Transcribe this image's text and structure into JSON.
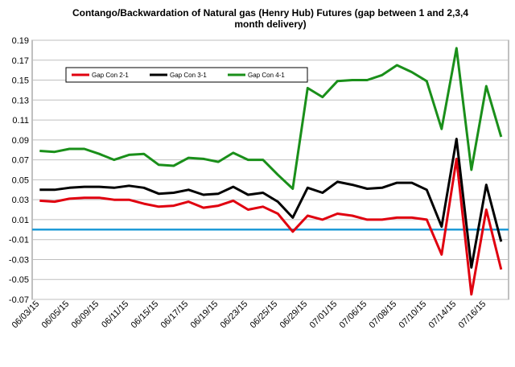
{
  "chart_data": {
    "type": "line",
    "title": "Contango/Backwardation of Natural gas (Henry Hub) Futures (gap between 1 and 2,3,4",
    "subtitle": "month delivery)",
    "xlabel": "",
    "ylabel": "",
    "ylim": [
      -0.07,
      0.19
    ],
    "yticks": [
      "0.19",
      "0.17",
      "0.15",
      "0.13",
      "0.11",
      "0.09",
      "0.07",
      "0.05",
      "0.03",
      "0.01",
      "-0.01",
      "-0.03",
      "-0.05",
      "-0.07"
    ],
    "ytick_values": [
      0.19,
      0.17,
      0.15,
      0.13,
      0.11,
      0.09,
      0.07,
      0.05,
      0.03,
      0.01,
      -0.01,
      -0.03,
      -0.05,
      -0.07
    ],
    "xtick_labels": [
      "06/03/15",
      "06/05/15",
      "06/09/15",
      "06/11/15",
      "06/15/15",
      "06/17/15",
      "06/19/15",
      "06/23/15",
      "06/25/15",
      "06/29/15",
      "07/01/15",
      "07/06/15",
      "07/08/15",
      "07/10/15",
      "07/14/15",
      "07/16/15"
    ],
    "reference_line": {
      "y": 0.0,
      "color": "#1f9bd7"
    },
    "legend_position": "top-left",
    "series": [
      {
        "name": "Gap Con 2-1",
        "color": "#e0000f",
        "values": [
          0.029,
          0.028,
          0.031,
          0.032,
          0.032,
          0.03,
          0.03,
          0.026,
          0.023,
          0.024,
          0.028,
          0.022,
          0.024,
          0.029,
          0.02,
          0.023,
          0.016,
          -0.002,
          0.014,
          0.01,
          0.016,
          0.014,
          0.01,
          0.01,
          0.012,
          0.012,
          0.01,
          -0.025,
          0.071,
          -0.065,
          0.02,
          -0.04
        ]
      },
      {
        "name": "Gap Con 3-1",
        "color": "#000000",
        "values": [
          0.04,
          0.04,
          0.042,
          0.043,
          0.043,
          0.042,
          0.044,
          0.042,
          0.036,
          0.037,
          0.04,
          0.035,
          0.036,
          0.043,
          0.035,
          0.037,
          0.028,
          0.012,
          0.042,
          0.037,
          0.048,
          0.045,
          0.041,
          0.042,
          0.047,
          0.047,
          0.04,
          0.003,
          0.091,
          -0.038,
          0.045,
          -0.012
        ]
      },
      {
        "name": "Gap Con 4-1",
        "color": "#1a8f1a",
        "values": [
          0.079,
          0.078,
          0.081,
          0.081,
          0.076,
          0.07,
          0.075,
          0.076,
          0.065,
          0.064,
          0.072,
          0.071,
          0.068,
          0.077,
          0.07,
          0.07,
          0.055,
          0.041,
          0.142,
          0.133,
          0.149,
          0.15,
          0.15,
          0.155,
          0.165,
          0.158,
          0.149,
          0.101,
          0.182,
          0.06,
          0.144,
          0.093
        ]
      }
    ]
  }
}
